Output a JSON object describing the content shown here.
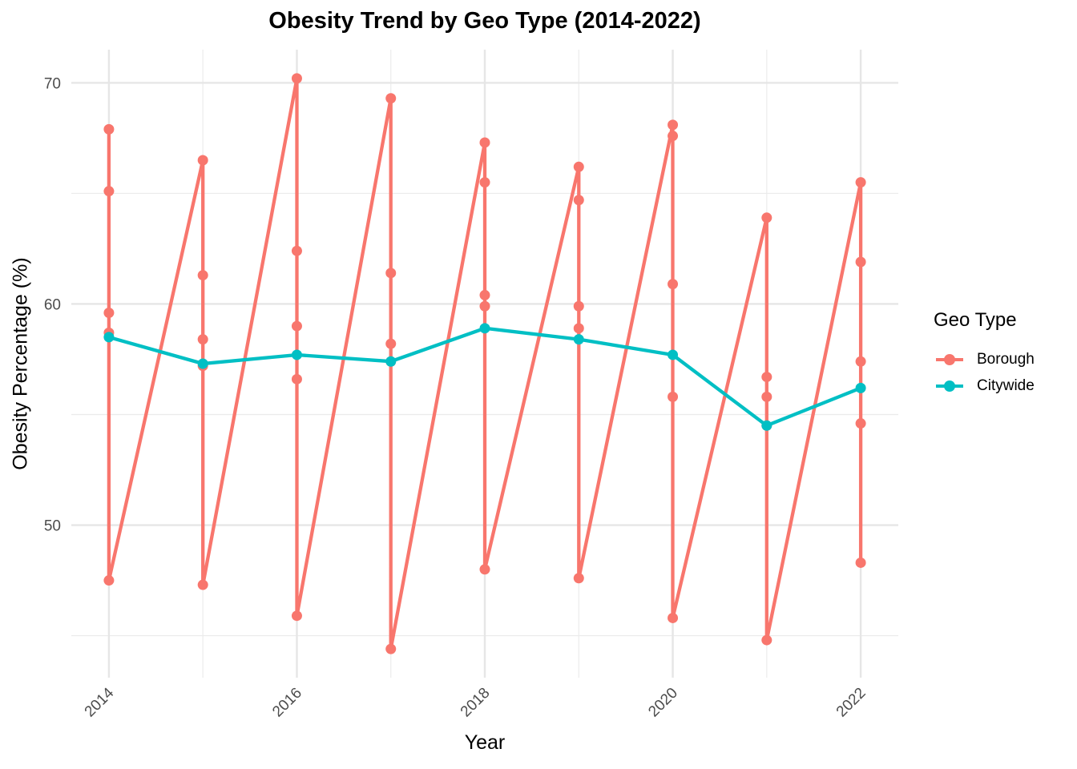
{
  "chart_data": {
    "type": "line",
    "title": "Obesity Trend by Geo Type (2014-2022)",
    "xlabel": "Year",
    "ylabel": "Obesity Percentage (%)",
    "xlim": [
      2013.6,
      2022.4
    ],
    "ylim": [
      43.1,
      71.5
    ],
    "x_ticks": [
      2014,
      2016,
      2018,
      2020,
      2022
    ],
    "x_tick_labels": [
      "2014",
      "2016",
      "2018",
      "2020",
      "2022"
    ],
    "y_ticks": [
      50,
      60,
      70
    ],
    "y_tick_labels": [
      "50",
      "60",
      "70"
    ],
    "grid": true,
    "legend": {
      "title": "Geo Type",
      "position": "right",
      "entries": [
        "Borough",
        "Citywide"
      ]
    },
    "series": [
      {
        "name": "Borough",
        "color": "#F8766D",
        "points": [
          [
            2014,
            67.9
          ],
          [
            2014,
            65.1
          ],
          [
            2014,
            59.6
          ],
          [
            2014,
            58.7
          ],
          [
            2014,
            47.5
          ],
          [
            2015,
            66.5
          ],
          [
            2015,
            61.3
          ],
          [
            2015,
            58.4
          ],
          [
            2015,
            57.2
          ],
          [
            2015,
            47.3
          ],
          [
            2016,
            70.2
          ],
          [
            2016,
            62.4
          ],
          [
            2016,
            59.0
          ],
          [
            2016,
            56.6
          ],
          [
            2016,
            45.9
          ],
          [
            2017,
            69.3
          ],
          [
            2017,
            61.4
          ],
          [
            2017,
            58.2
          ],
          [
            2017,
            57.4
          ],
          [
            2017,
            44.4
          ],
          [
            2018,
            67.3
          ],
          [
            2018,
            65.5
          ],
          [
            2018,
            60.4
          ],
          [
            2018,
            59.9
          ],
          [
            2018,
            48.0
          ],
          [
            2019,
            66.2
          ],
          [
            2019,
            64.7
          ],
          [
            2019,
            59.9
          ],
          [
            2019,
            58.9
          ],
          [
            2019,
            47.6
          ],
          [
            2020,
            68.1
          ],
          [
            2020,
            67.6
          ],
          [
            2020,
            60.9
          ],
          [
            2020,
            55.8
          ],
          [
            2020,
            45.8
          ],
          [
            2021,
            63.9
          ],
          [
            2021,
            56.7
          ],
          [
            2021,
            55.8
          ],
          [
            2021,
            54.5
          ],
          [
            2021,
            44.8
          ],
          [
            2022,
            65.5
          ],
          [
            2022,
            61.9
          ],
          [
            2022,
            57.4
          ],
          [
            2022,
            54.6
          ],
          [
            2022,
            48.3
          ]
        ]
      },
      {
        "name": "Citywide",
        "color": "#00BFC4",
        "points": [
          [
            2014,
            58.5
          ],
          [
            2015,
            57.3
          ],
          [
            2016,
            57.7
          ],
          [
            2017,
            57.4
          ],
          [
            2018,
            58.9
          ],
          [
            2019,
            58.4
          ],
          [
            2020,
            57.7
          ],
          [
            2021,
            54.5
          ],
          [
            2022,
            56.2
          ]
        ]
      }
    ]
  }
}
